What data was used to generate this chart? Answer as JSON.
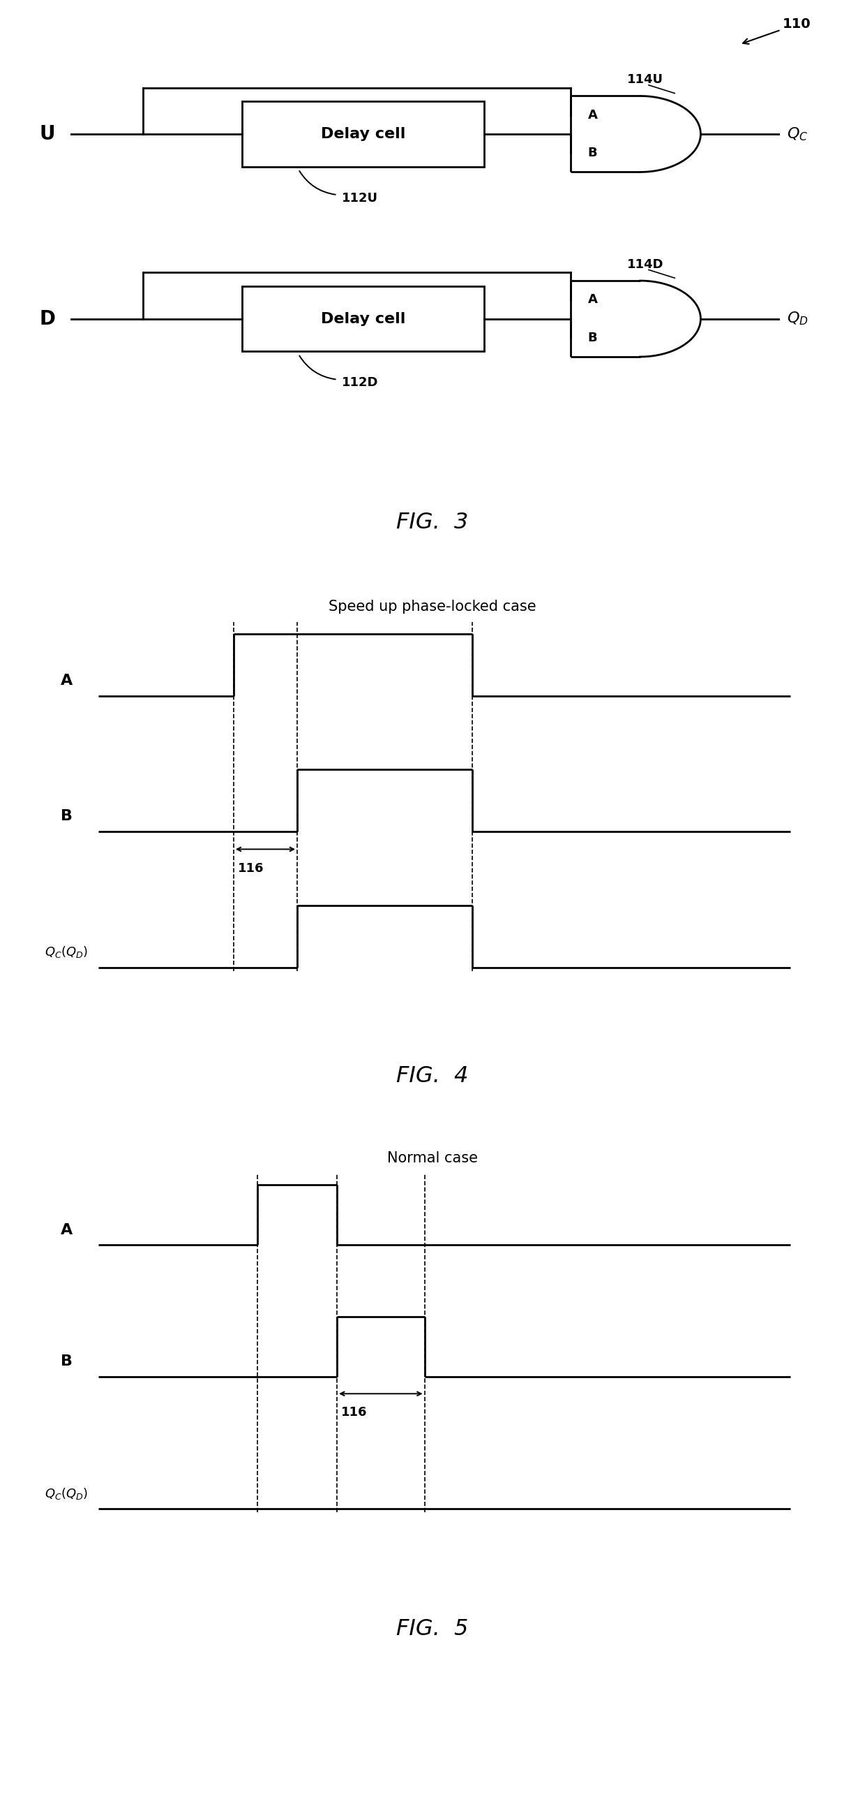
{
  "fig_width": 12.4,
  "fig_height": 25.94,
  "bg_color": "#ffffff",
  "line_color": "#000000",
  "line_width": 2.0,
  "fig3": {
    "title": "FIG.  3",
    "label_110": "110",
    "label_114U": "114U",
    "label_114D": "114D",
    "label_112U": "112U",
    "label_112D": "112D",
    "label_U": "U",
    "label_D": "D",
    "label_A": "A",
    "label_B": "B",
    "label_QC": "$Q_C$",
    "label_QD": "$Q_D$"
  },
  "fig4": {
    "title": "FIG.  4",
    "subtitle": "Speed up phase-locked case",
    "label_A": "A",
    "label_B": "B",
    "label_QCD": "$Q_C(Q_D)$",
    "label_116": "116",
    "A_rise": 2.5,
    "A_fall": 5.5,
    "B_rise": 3.3,
    "B_fall": 5.5,
    "Q_rise": 3.3,
    "Q_fall": 5.5
  },
  "fig5": {
    "title": "FIG.  5",
    "subtitle": "Normal case",
    "label_A": "A",
    "label_B": "B",
    "label_QCD": "$Q_C(Q_D)$",
    "label_116": "116",
    "A_rise": 2.8,
    "A_fall": 3.8,
    "B_rise": 3.8,
    "B_fall": 4.9,
    "Q_rise": null,
    "Q_fall": null
  }
}
